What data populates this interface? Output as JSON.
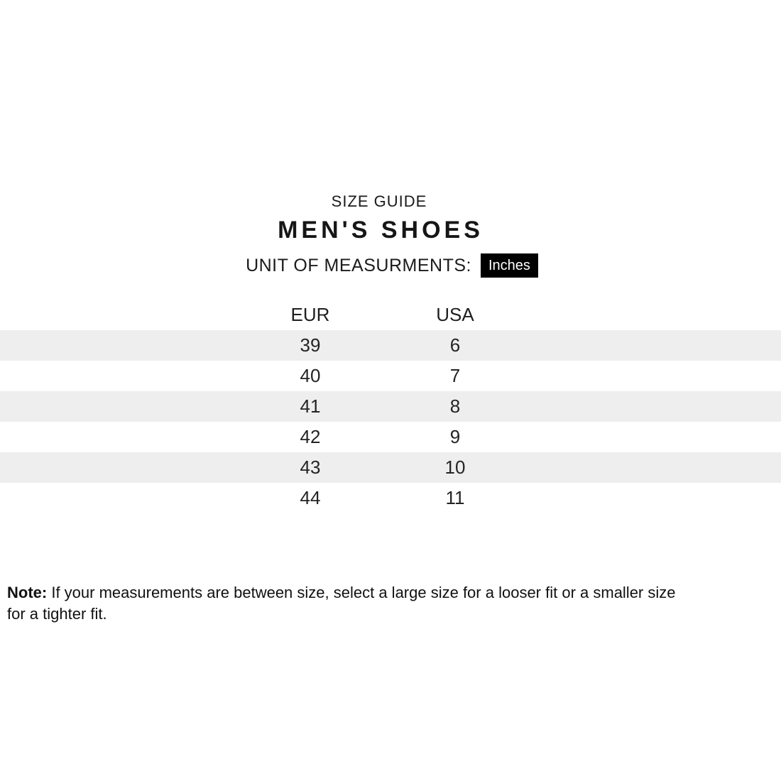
{
  "header": {
    "eyebrow": "SIZE GUIDE",
    "title": "MEN'S SHOES",
    "unit_label": "UNIT OF MEASURMENTS:",
    "unit_value": "Inches"
  },
  "table": {
    "columns": [
      "EUR",
      "USA"
    ],
    "rows": [
      [
        "39",
        "6"
      ],
      [
        "40",
        "7"
      ],
      [
        "41",
        "8"
      ],
      [
        "42",
        "9"
      ],
      [
        "43",
        "10"
      ],
      [
        "44",
        "11"
      ]
    ]
  },
  "note": {
    "label": "Note:",
    "line1": "If your measurements are between size, select a large size for a looser fit or a smaller size",
    "line2": "for a tighter fit."
  },
  "colors": {
    "stripe": "#eeeeee",
    "badge_bg": "#000000",
    "badge_text": "#ffffff",
    "text": "#1c1c1c"
  }
}
